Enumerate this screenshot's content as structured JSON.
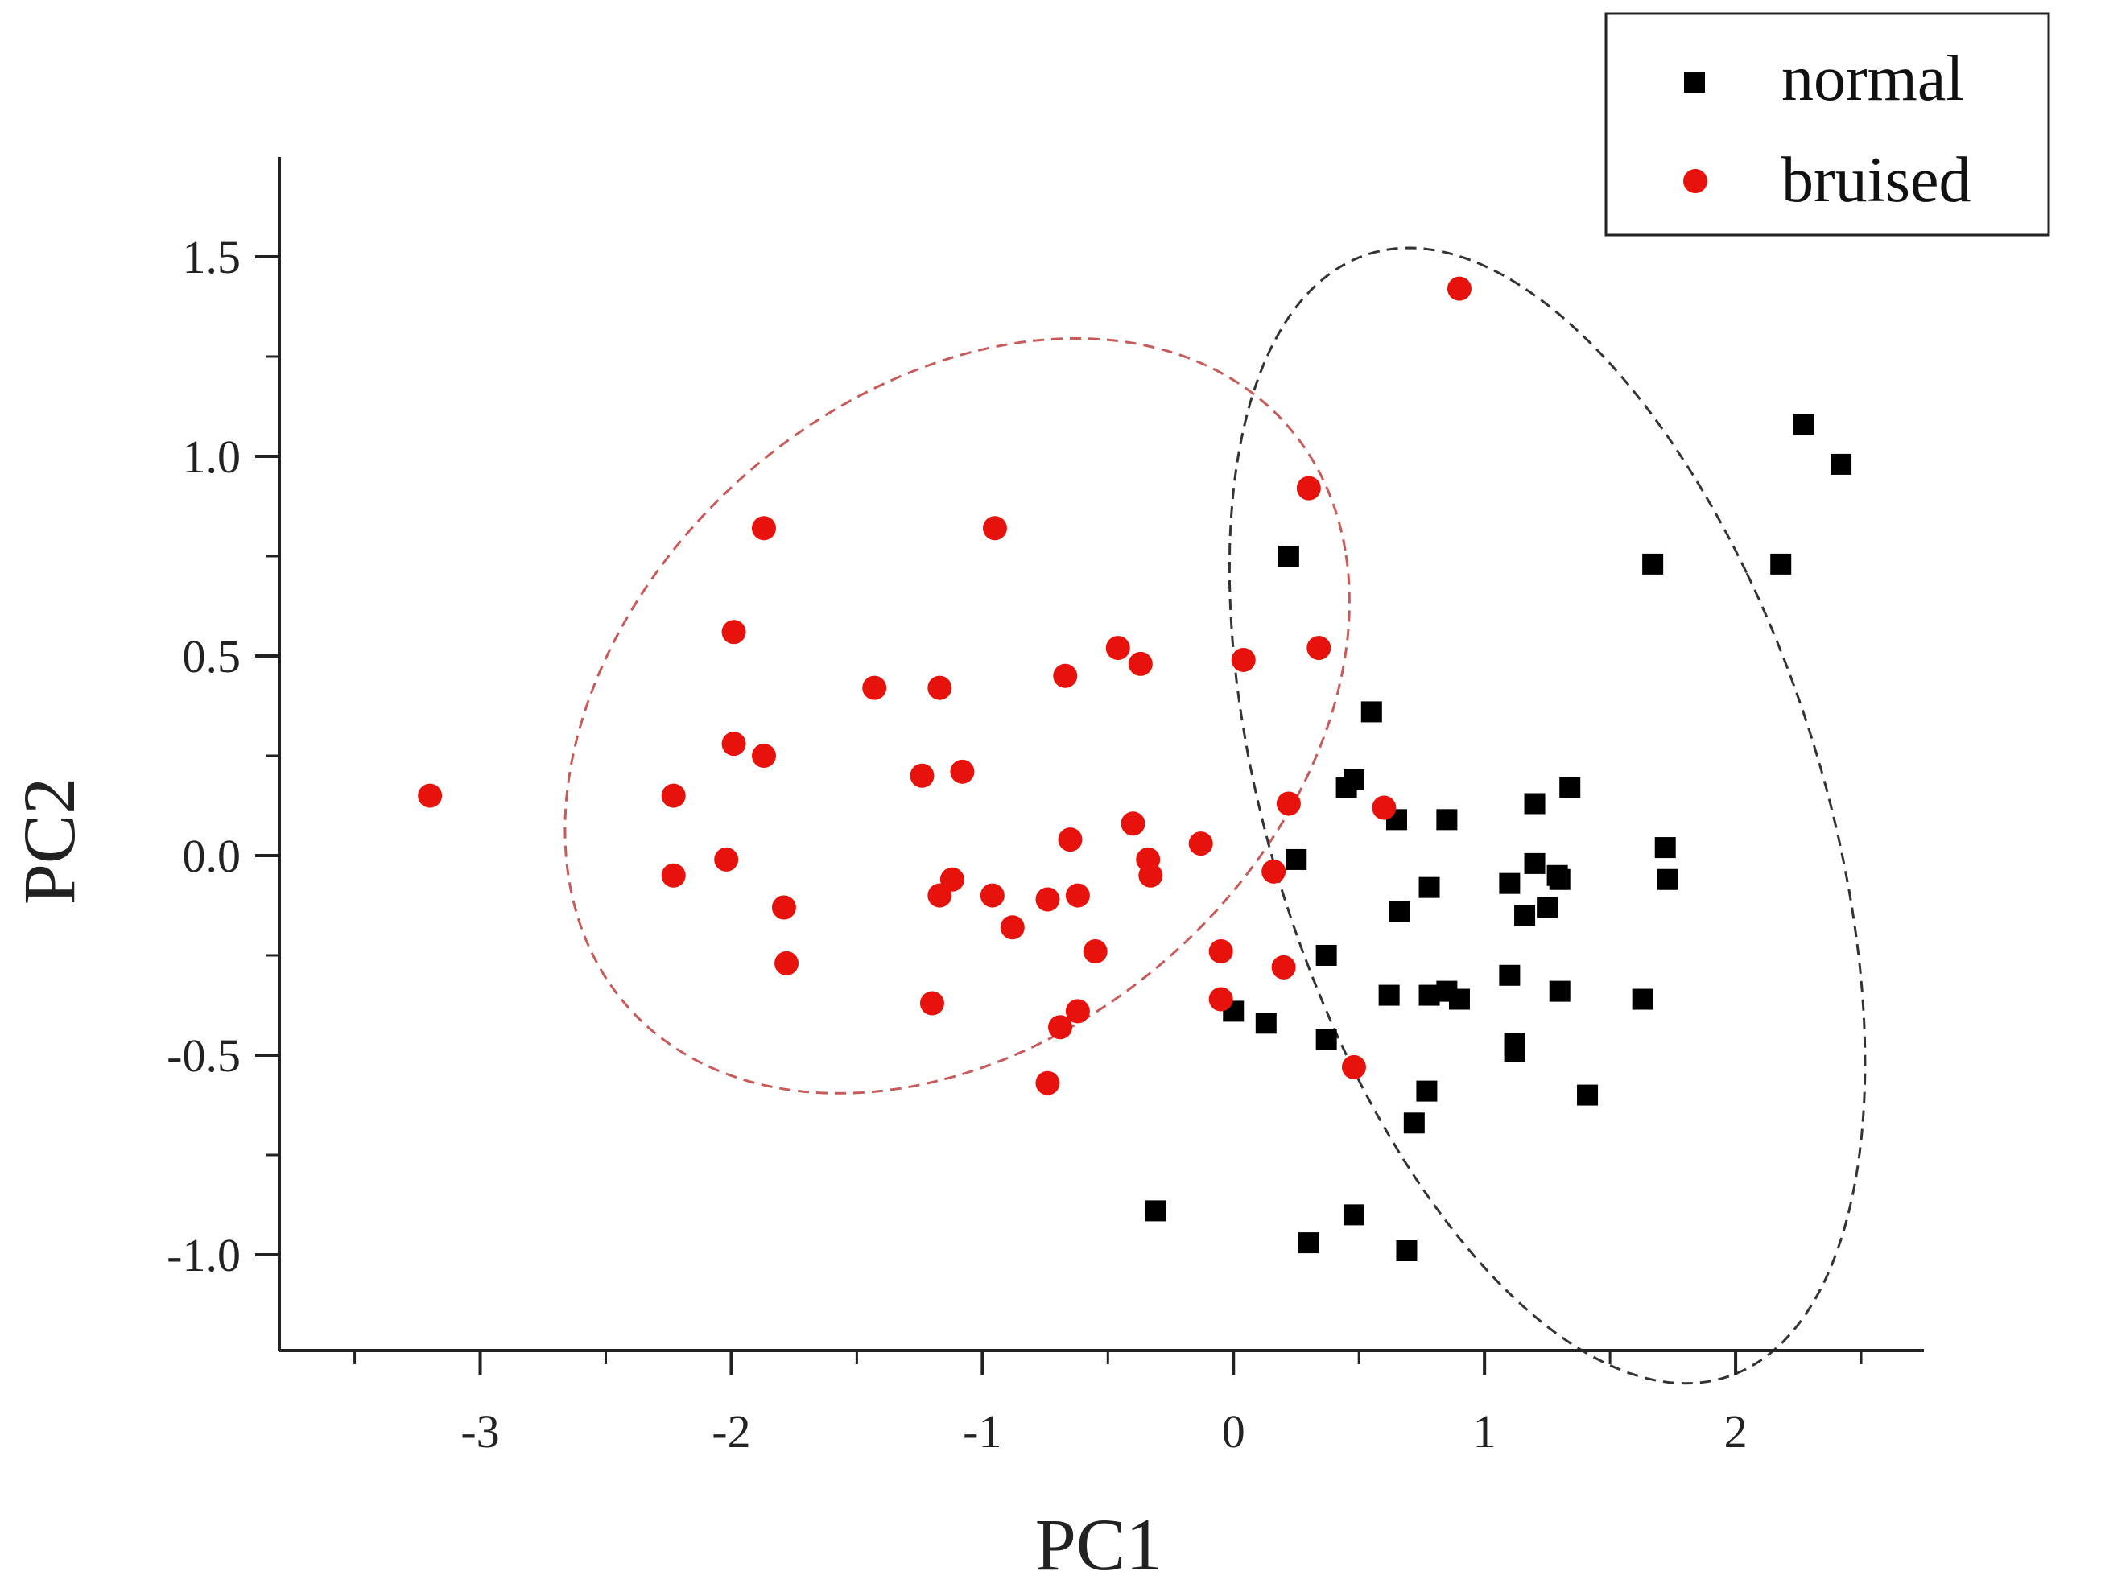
{
  "chart_data": {
    "type": "scatter",
    "title": "",
    "xlabel": "PC1",
    "ylabel": "PC2",
    "xlim": [
      -3.8,
      2.75
    ],
    "ylim": [
      -1.24,
      1.75
    ],
    "xticks": [
      -3,
      -2,
      -1,
      0,
      1,
      2
    ],
    "xtick_labels": [
      "-3",
      "-2",
      "-1",
      "0",
      "1",
      "2"
    ],
    "yticks": [
      -1.0,
      -0.5,
      0.0,
      0.5,
      1.0,
      1.5
    ],
    "ytick_labels": [
      "-1.0",
      "-0.5",
      "0.0",
      "0.5",
      "1.0",
      "1.5"
    ],
    "grid": false,
    "legend_position": "top-right",
    "series": [
      {
        "name": "normal",
        "marker": "square",
        "color": "#000000",
        "points": [
          [
            0.22,
            0.75
          ],
          [
            0.25,
            -0.01
          ],
          [
            0.55,
            0.36
          ],
          [
            0.45,
            0.17
          ],
          [
            0.48,
            0.19
          ],
          [
            0.65,
            0.09
          ],
          [
            0.85,
            0.09
          ],
          [
            1.2,
            0.13
          ],
          [
            1.34,
            0.17
          ],
          [
            1.72,
            0.02
          ],
          [
            1.73,
            -0.06
          ],
          [
            1.1,
            -0.07
          ],
          [
            1.2,
            -0.02
          ],
          [
            1.3,
            -0.06
          ],
          [
            1.29,
            -0.05
          ],
          [
            1.25,
            -0.13
          ],
          [
            1.16,
            -0.15
          ],
          [
            0.78,
            -0.08
          ],
          [
            0.66,
            -0.14
          ],
          [
            0.37,
            -0.25
          ],
          [
            0.62,
            -0.35
          ],
          [
            0.78,
            -0.35
          ],
          [
            0.85,
            -0.34
          ],
          [
            0.9,
            -0.36
          ],
          [
            1.1,
            -0.3
          ],
          [
            1.3,
            -0.34
          ],
          [
            1.63,
            -0.36
          ],
          [
            1.12,
            -0.47
          ],
          [
            1.12,
            -0.49
          ],
          [
            0.0,
            -0.39
          ],
          [
            0.13,
            -0.42
          ],
          [
            0.37,
            -0.46
          ],
          [
            0.77,
            -0.59
          ],
          [
            0.72,
            -0.67
          ],
          [
            1.41,
            -0.6
          ],
          [
            -0.31,
            -0.89
          ],
          [
            0.3,
            -0.97
          ],
          [
            0.48,
            -0.9
          ],
          [
            0.69,
            -0.99
          ],
          [
            1.67,
            0.73
          ],
          [
            2.18,
            0.73
          ],
          [
            2.27,
            1.08
          ],
          [
            2.42,
            0.98
          ]
        ]
      },
      {
        "name": "bruised",
        "marker": "circle",
        "color": "#e8120c",
        "points": [
          [
            -3.2,
            0.15
          ],
          [
            -2.23,
            0.15
          ],
          [
            -2.23,
            -0.05
          ],
          [
            -2.02,
            -0.01
          ],
          [
            -1.99,
            0.28
          ],
          [
            -1.99,
            0.56
          ],
          [
            -1.87,
            0.25
          ],
          [
            -1.87,
            0.82
          ],
          [
            -1.79,
            -0.13
          ],
          [
            -1.78,
            -0.27
          ],
          [
            -1.43,
            0.42
          ],
          [
            -1.24,
            0.2
          ],
          [
            -1.17,
            0.42
          ],
          [
            -1.17,
            -0.1
          ],
          [
            -1.2,
            -0.37
          ],
          [
            -1.12,
            -0.06
          ],
          [
            -1.08,
            0.21
          ],
          [
            -0.96,
            -0.1
          ],
          [
            -0.95,
            0.82
          ],
          [
            -0.88,
            -0.18
          ],
          [
            -0.74,
            -0.11
          ],
          [
            -0.74,
            -0.57
          ],
          [
            -0.69,
            -0.43
          ],
          [
            -0.67,
            0.45
          ],
          [
            -0.65,
            0.04
          ],
          [
            -0.62,
            -0.1
          ],
          [
            -0.62,
            -0.39
          ],
          [
            -0.55,
            -0.24
          ],
          [
            -0.46,
            0.52
          ],
          [
            -0.4,
            0.08
          ],
          [
            -0.37,
            0.48
          ],
          [
            -0.34,
            -0.01
          ],
          [
            -0.33,
            -0.05
          ],
          [
            -0.13,
            0.03
          ],
          [
            -0.05,
            -0.24
          ],
          [
            -0.05,
            -0.36
          ],
          [
            0.04,
            0.49
          ],
          [
            0.16,
            -0.04
          ],
          [
            0.2,
            -0.28
          ],
          [
            0.22,
            0.13
          ],
          [
            0.3,
            0.92
          ],
          [
            0.34,
            0.52
          ],
          [
            0.6,
            0.12
          ],
          [
            0.48,
            -0.53
          ],
          [
            0.9,
            1.42
          ]
        ]
      }
    ],
    "annotations": [
      {
        "type": "ellipse",
        "group": "bruised",
        "color": "#c85a5a",
        "style": "dashed",
        "center": [
          -1.1,
          0.35
        ],
        "rx": 1.6,
        "ry": 0.88,
        "angle_deg": 15
      },
      {
        "type": "ellipse",
        "group": "normal",
        "color": "#333333",
        "style": "dashed",
        "center": [
          1.25,
          0.1
        ],
        "rx": 1.0,
        "ry": 1.62,
        "angle_deg": 37.5
      }
    ]
  }
}
